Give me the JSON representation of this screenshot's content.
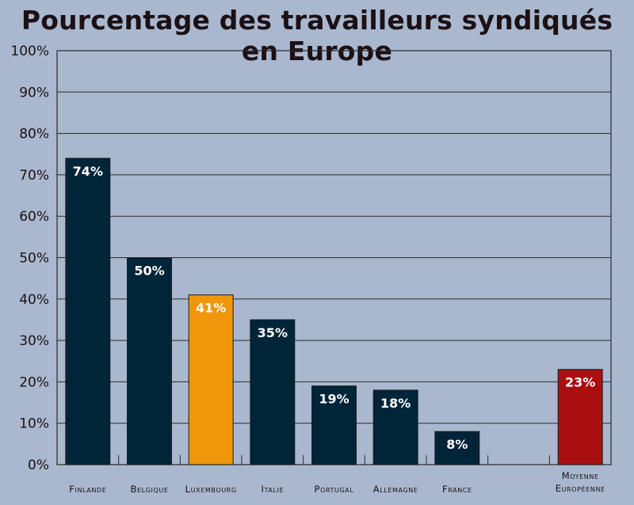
{
  "chart_data": {
    "type": "bar",
    "title": "Pourcentage des travailleurs syndiqués en Europe",
    "categories": [
      "Finlande",
      "Belgique",
      "Luxembourg",
      "Italie",
      "Portugal",
      "Allemagne",
      "France",
      "",
      "Moyenne|Européenne"
    ],
    "values": [
      74,
      50,
      41,
      35,
      19,
      18,
      8,
      null,
      23
    ],
    "value_labels": [
      "74%",
      "50%",
      "41%",
      "35%",
      "19%",
      "18%",
      "8%",
      "",
      "23%"
    ],
    "bar_colors": [
      "#002438",
      "#002438",
      "#f0960a",
      "#002438",
      "#002438",
      "#002438",
      "#002438",
      "",
      "#a90f10"
    ],
    "value_label_colors": [
      "#ffffff",
      "#ffffff",
      "#ffffff",
      "#ffffff",
      "#ffffff",
      "#ffffff",
      "#ffffff",
      "",
      "#ffffff"
    ],
    "ylim": [
      0,
      100
    ],
    "yticks": [
      0,
      10,
      20,
      30,
      40,
      50,
      60,
      70,
      80,
      90,
      100
    ],
    "ytick_labels": [
      "0%",
      "10%",
      "20%",
      "30%",
      "40%",
      "50%",
      "60%",
      "70%",
      "80%",
      "90%",
      "100%"
    ],
    "grid": true,
    "colors": {
      "background": "#a9b8cf",
      "gridline": "#2a2a2a",
      "text": "#1c1014"
    }
  }
}
